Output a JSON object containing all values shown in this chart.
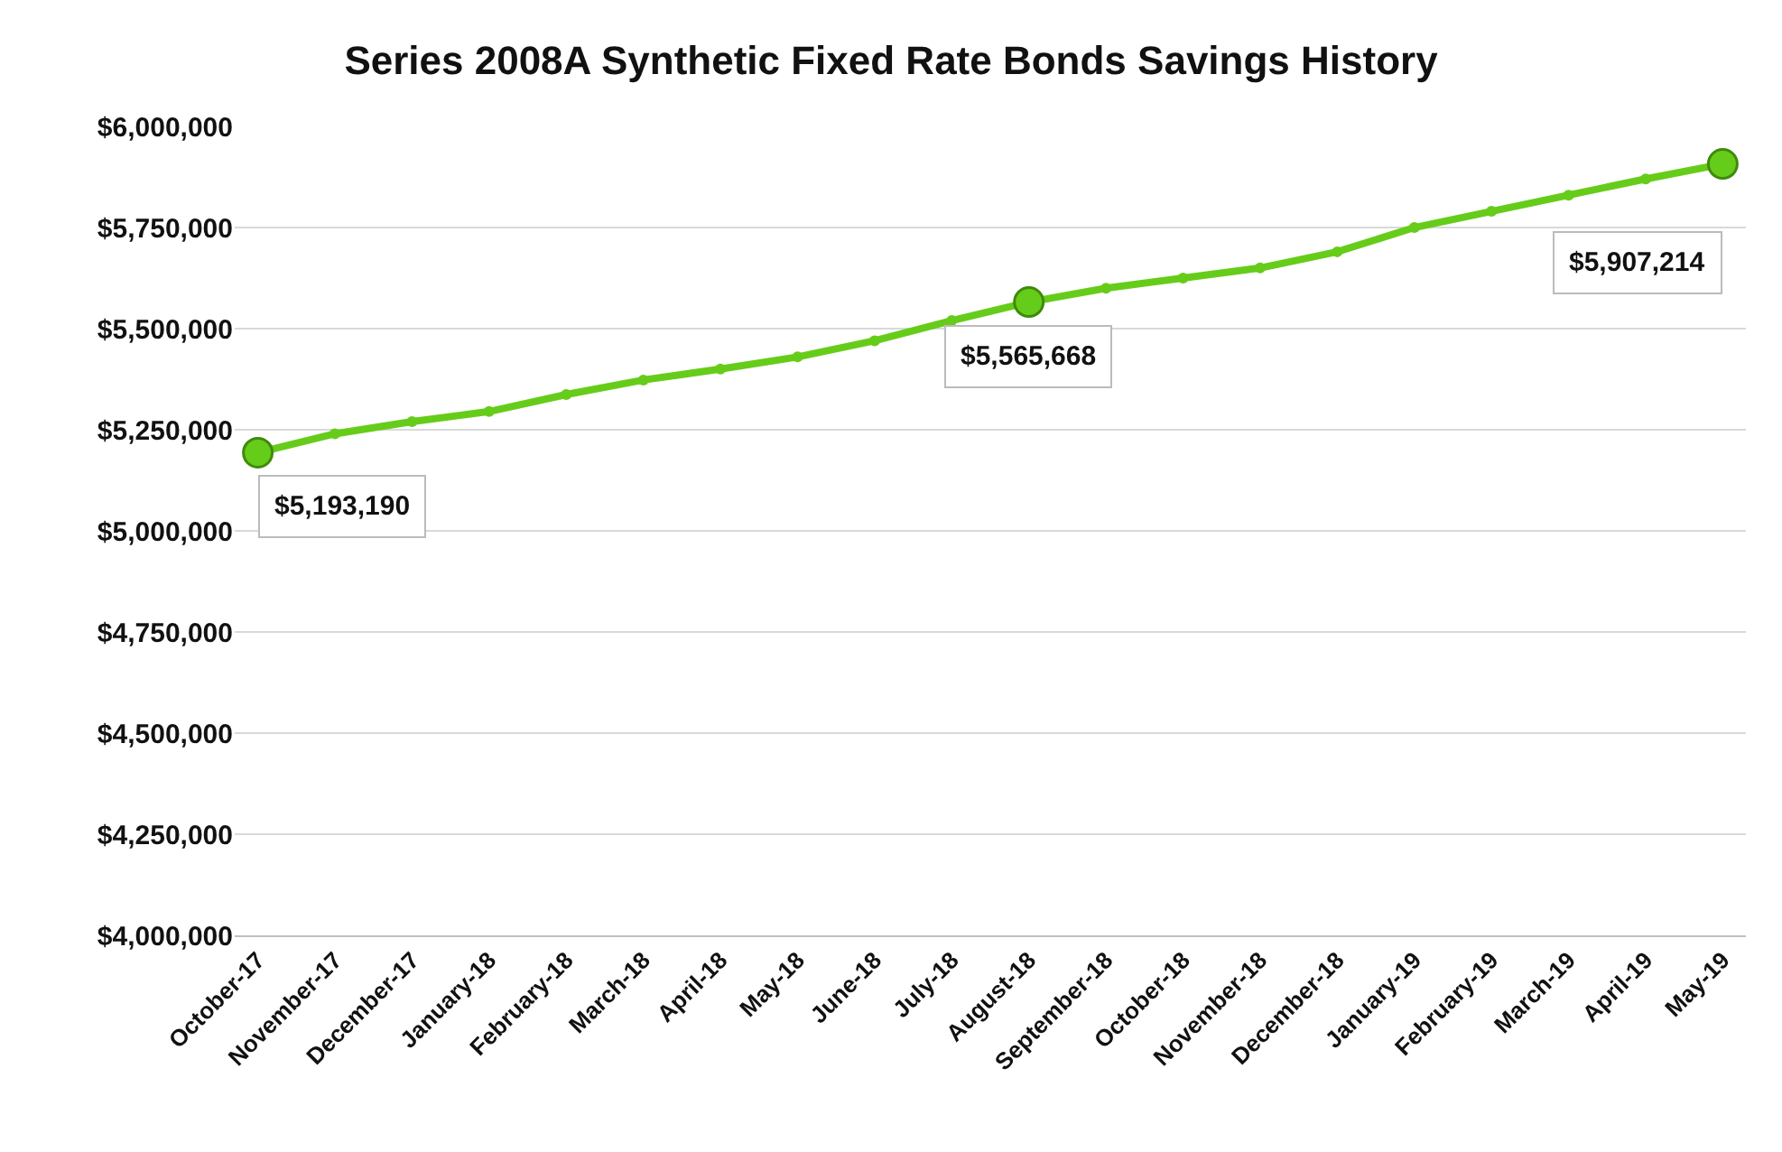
{
  "chart_data": {
    "type": "line",
    "title": "Series 2008A Synthetic Fixed Rate Bonds Savings History",
    "categories": [
      "October-17",
      "November-17",
      "December-17",
      "January-18",
      "February-18",
      "March-18",
      "April-18",
      "May-18",
      "June-18",
      "July-18",
      "August-18",
      "September-18",
      "October-18",
      "November-18",
      "December-18",
      "January-19",
      "February-19",
      "March-19",
      "April-19",
      "May-19"
    ],
    "series": [
      {
        "color": "#66cc1a",
        "values": [
          5193190,
          5240000,
          5270000,
          5295000,
          5337000,
          5373000,
          5400000,
          5430000,
          5470000,
          5520000,
          5565668,
          5600000,
          5625000,
          5650000,
          5690000,
          5750000,
          5790000,
          5830000,
          5870000,
          5907214
        ],
        "value_labels": [
          "$5,193,190",
          null,
          null,
          null,
          null,
          null,
          null,
          null,
          null,
          null,
          "$5,565,668",
          null,
          null,
          null,
          null,
          null,
          null,
          null,
          null,
          "$5,907,214"
        ]
      }
    ],
    "ylim": [
      4000000,
      6000000
    ],
    "yticks": [
      {
        "value": 4000000,
        "label": "$4,000,000"
      },
      {
        "value": 4250000,
        "label": "$4,250,000"
      },
      {
        "value": 4500000,
        "label": "$4,500,000"
      },
      {
        "value": 4750000,
        "label": "$4,750,000"
      },
      {
        "value": 5000000,
        "label": "$5,000,000"
      },
      {
        "value": 5250000,
        "label": "$5,250,000"
      },
      {
        "value": 5500000,
        "label": "$5,500,000"
      },
      {
        "value": 5750000,
        "label": "$5,750,000"
      },
      {
        "value": 6000000,
        "label": "$6,000,000"
      }
    ],
    "grid": "y",
    "legend": false,
    "marker": "circle",
    "line_style": "solid"
  }
}
